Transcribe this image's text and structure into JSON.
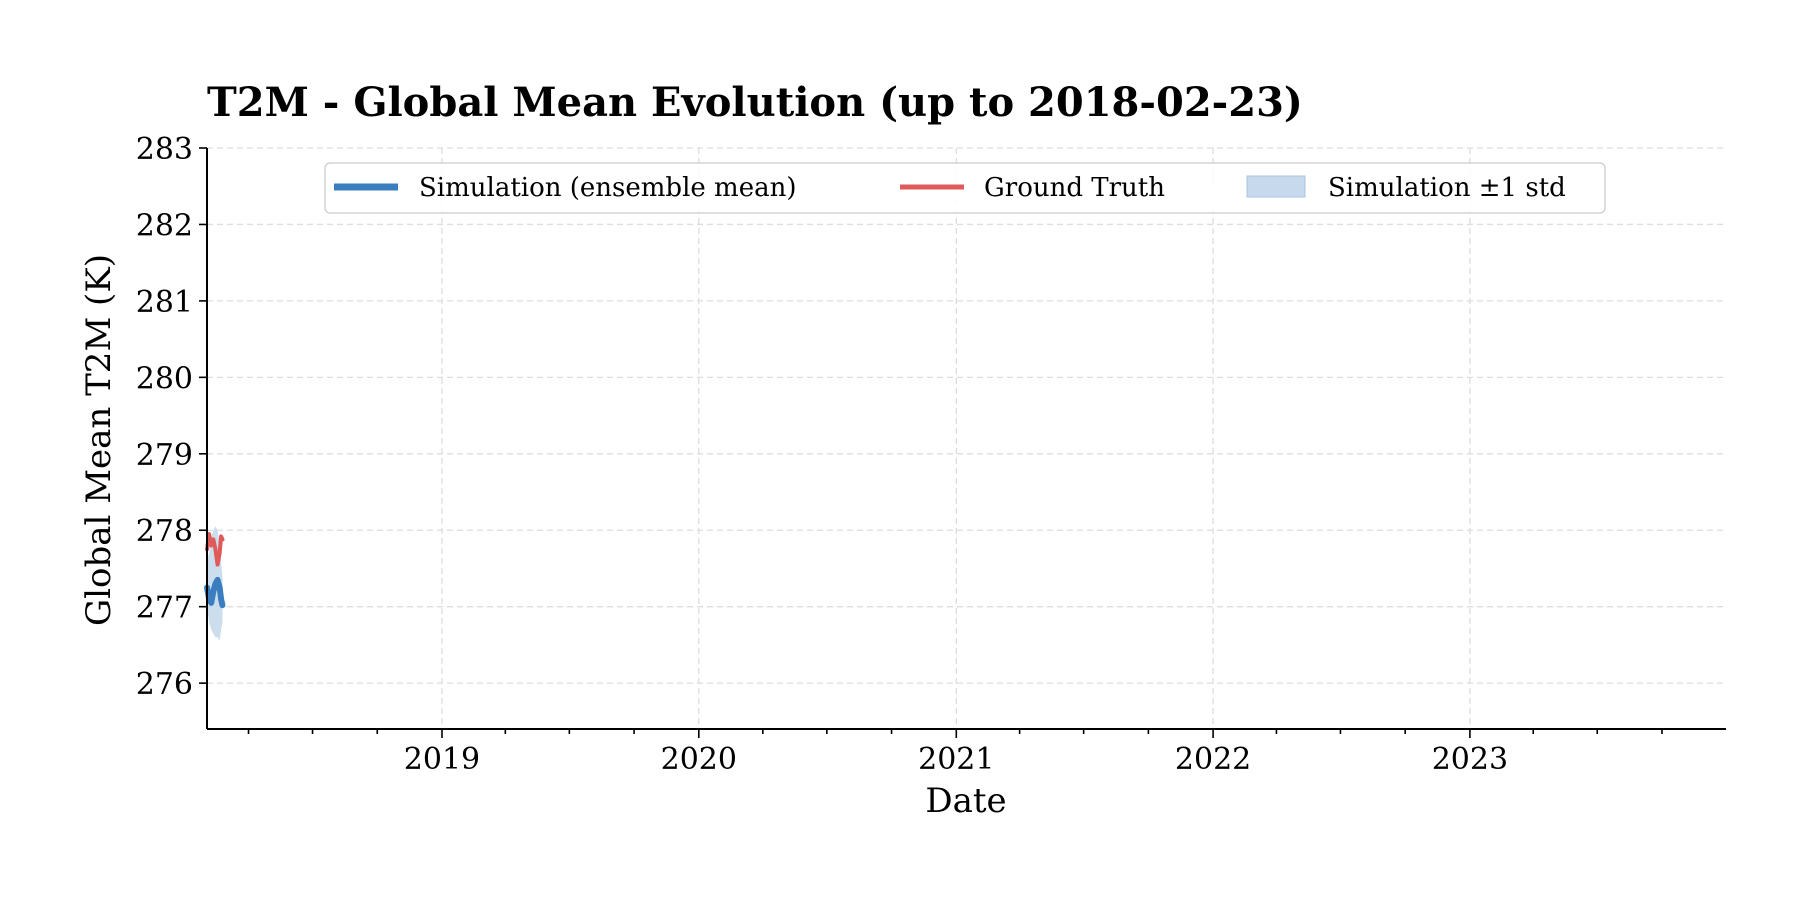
{
  "chart_data": {
    "type": "line",
    "title": "T2M - Global Mean Evolution (up to 2018-02-23)",
    "xlabel": "Date",
    "ylabel": "Global Mean T2M (K)",
    "xlim": [
      "2018-02-01",
      "2023-12-31"
    ],
    "ylim": [
      275.4,
      283.0
    ],
    "x_ticks": [
      "2019",
      "2020",
      "2021",
      "2022",
      "2023"
    ],
    "y_ticks": [
      276,
      277,
      278,
      279,
      280,
      281,
      282,
      283
    ],
    "grid": true,
    "legend_placement": "top-center",
    "legend": [
      {
        "label": "Simulation (ensemble mean)",
        "kind": "line",
        "color": "#3a7ebf"
      },
      {
        "label": "Ground Truth",
        "kind": "line",
        "color": "#e05a5a"
      },
      {
        "label": "Simulation ±1 std",
        "kind": "band",
        "color": "#c7d9ec"
      }
    ],
    "series": [
      {
        "name": "Simulation (ensemble mean)",
        "color": "#3a7ebf",
        "x": [
          "2018-02-01",
          "2018-02-04",
          "2018-02-07",
          "2018-02-10",
          "2018-02-13",
          "2018-02-16",
          "2018-02-19",
          "2018-02-21",
          "2018-02-23"
        ],
        "y": [
          277.25,
          277.1,
          277.05,
          277.2,
          277.3,
          277.35,
          277.25,
          277.1,
          277.02
        ]
      },
      {
        "name": "Simulation ±1 std",
        "color": "#c7d9ec",
        "x": [
          "2018-02-01",
          "2018-02-04",
          "2018-02-07",
          "2018-02-10",
          "2018-02-13",
          "2018-02-16",
          "2018-02-19",
          "2018-02-21",
          "2018-02-23"
        ],
        "lower": [
          277.0,
          276.8,
          276.7,
          276.65,
          276.6,
          276.6,
          276.55,
          276.7,
          276.8
        ],
        "upper": [
          277.6,
          277.7,
          277.9,
          278.0,
          278.05,
          278.0,
          277.8,
          277.6,
          277.4
        ]
      },
      {
        "name": "Ground Truth",
        "color": "#e05a5a",
        "x": [
          "2018-02-01",
          "2018-02-04",
          "2018-02-07",
          "2018-02-10",
          "2018-02-13",
          "2018-02-16",
          "2018-02-19",
          "2018-02-21",
          "2018-02-23"
        ],
        "y": [
          277.75,
          277.95,
          277.8,
          277.88,
          277.75,
          277.55,
          277.7,
          277.92,
          277.88
        ]
      }
    ]
  }
}
